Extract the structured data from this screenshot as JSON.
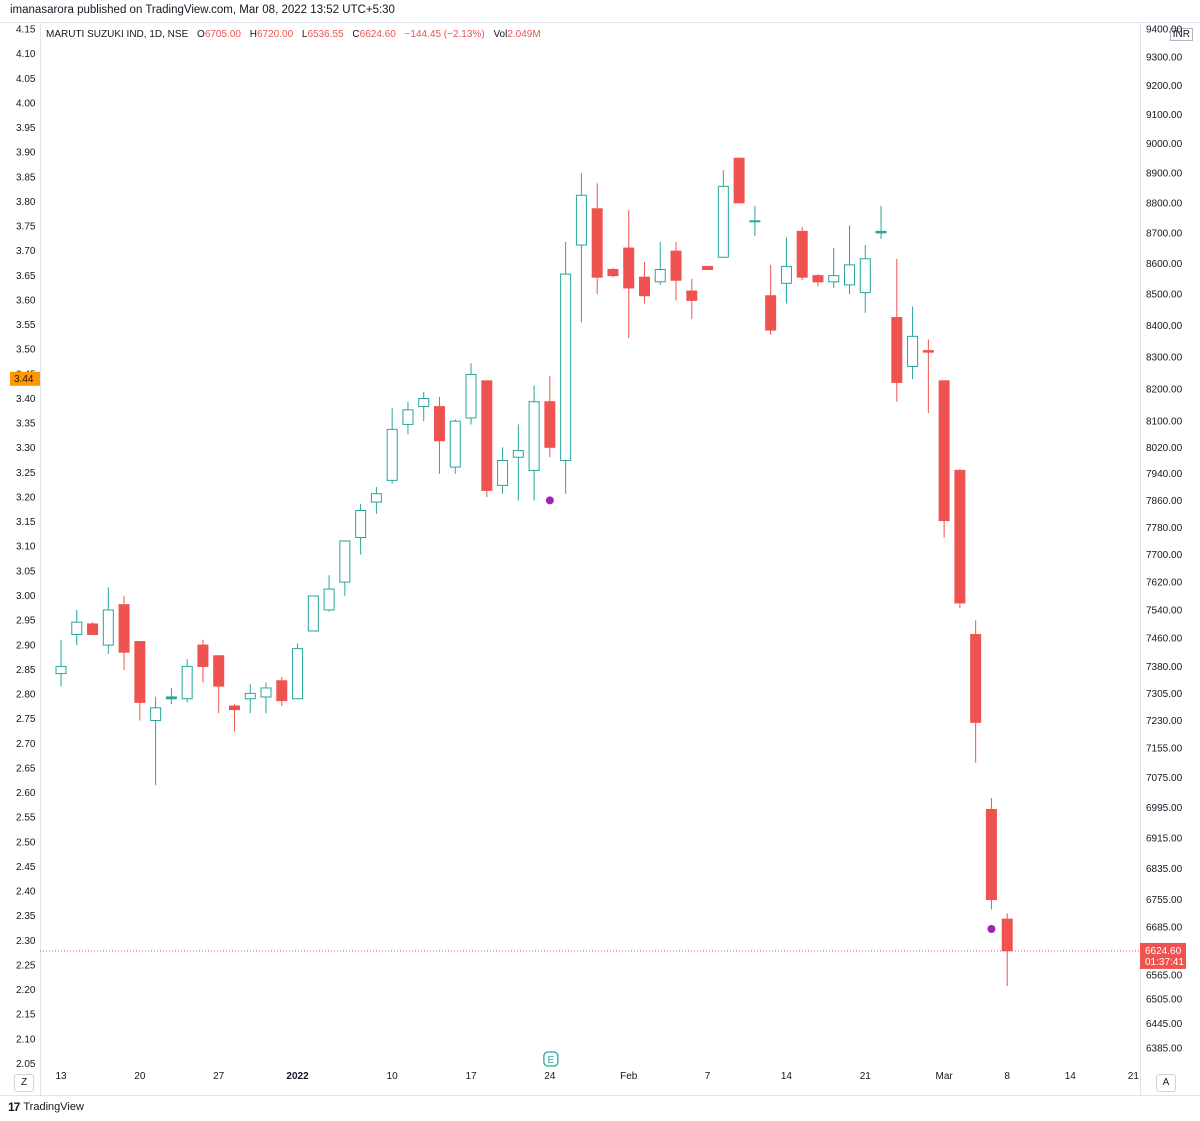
{
  "publisher": "imanasarora published on TradingView.com, Mar 08, 2022 13:52 UTC+5:30",
  "legend": {
    "symbol": "MARUTI SUZUKI IND, 1D, NSE",
    "open_label": "O",
    "open": "6705.00",
    "high_label": "H",
    "high": "6720.00",
    "low_label": "L",
    "low": "6536.55",
    "close_label": "C",
    "close": "6624.60",
    "change": "−144.45 (−2.13%)",
    "vol_label": "Vol",
    "vol": "2.049M"
  },
  "currency": "INR",
  "buttons": {
    "left": "Z",
    "right": "A"
  },
  "footer": {
    "logo": "17",
    "brand": "TradingView"
  },
  "earnings_marker": "E",
  "colors": {
    "up": "#26a69a",
    "down": "#ef5350",
    "accent": "#ff9800",
    "dot": "#9c27b0",
    "grid": "#e0e3eb"
  },
  "chart_data": {
    "type": "candlestick",
    "title": "MARUTI SUZUKI IND, 1D, NSE",
    "right_axis": {
      "ticks": [
        "9400.00",
        "9300.00",
        "9200.00",
        "9100.00",
        "9000.00",
        "8900.00",
        "8800.00",
        "8700.00",
        "8600.00",
        "8500.00",
        "8400.00",
        "8300.00",
        "8200.00",
        "8100.00",
        "8020.00",
        "7940.00",
        "7860.00",
        "7780.00",
        "7700.00",
        "7620.00",
        "7540.00",
        "7460.00",
        "7380.00",
        "7305.00",
        "7230.00",
        "7155.00",
        "7075.00",
        "6995.00",
        "6915.00",
        "6835.00",
        "6755.00",
        "6685.00",
        "6565.00",
        "6505.00",
        "6445.00",
        "6385.00"
      ],
      "scale": "log"
    },
    "left_axis": {
      "ticks": [
        "4.15",
        "4.10",
        "4.05",
        "4.00",
        "3.95",
        "3.90",
        "3.85",
        "3.80",
        "3.75",
        "3.70",
        "3.65",
        "3.60",
        "3.55",
        "3.50",
        "3.45",
        "3.40",
        "3.35",
        "3.30",
        "3.25",
        "3.20",
        "3.15",
        "3.10",
        "3.05",
        "3.00",
        "2.95",
        "2.90",
        "2.85",
        "2.80",
        "2.75",
        "2.70",
        "2.65",
        "2.60",
        "2.55",
        "2.50",
        "2.45",
        "2.40",
        "2.35",
        "2.30",
        "2.25",
        "2.20",
        "2.15",
        "2.10",
        "2.05"
      ],
      "badge": "3.44"
    },
    "x_ticks": [
      {
        "label": "13",
        "i": 0
      },
      {
        "label": "20",
        "i": 5
      },
      {
        "label": "27",
        "i": 10
      },
      {
        "label": "2022",
        "i": 15
      },
      {
        "label": "10",
        "i": 21
      },
      {
        "label": "17",
        "i": 26
      },
      {
        "label": "24",
        "i": 31
      },
      {
        "label": "Feb",
        "i": 36
      },
      {
        "label": "7",
        "i": 41
      },
      {
        "label": "14",
        "i": 46
      },
      {
        "label": "21",
        "i": 51
      },
      {
        "label": "Mar",
        "i": 56
      },
      {
        "label": "8",
        "i": 60
      },
      {
        "label": "14",
        "i": 64
      },
      {
        "label": "21",
        "i": 68
      }
    ],
    "last_price": {
      "value": "6624.60",
      "timer": "01:37:41",
      "price": 6624.6
    },
    "dots": [
      {
        "i": 31,
        "price": 7860
      },
      {
        "i": 59,
        "price": 6680
      }
    ],
    "earnings_index": 31,
    "candles": [
      {
        "o": 7360,
        "h": 7455,
        "l": 7325,
        "c": 7380
      },
      {
        "o": 7470,
        "h": 7540,
        "l": 7440,
        "c": 7505
      },
      {
        "o": 7500,
        "h": 7505,
        "l": 7470,
        "c": 7470
      },
      {
        "o": 7440,
        "h": 7605,
        "l": 7415,
        "c": 7540
      },
      {
        "o": 7555,
        "h": 7580,
        "l": 7370,
        "c": 7420
      },
      {
        "o": 7450,
        "h": 7450,
        "l": 7230,
        "c": 7280
      },
      {
        "o": 7230,
        "h": 7295,
        "l": 7055,
        "c": 7265
      },
      {
        "o": 7290,
        "h": 7320,
        "l": 7275,
        "c": 7295
      },
      {
        "o": 7290,
        "h": 7400,
        "l": 7280,
        "c": 7380
      },
      {
        "o": 7440,
        "h": 7455,
        "l": 7335,
        "c": 7380
      },
      {
        "o": 7410,
        "h": 7410,
        "l": 7250,
        "c": 7325
      },
      {
        "o": 7270,
        "h": 7275,
        "l": 7200,
        "c": 7260
      },
      {
        "o": 7290,
        "h": 7330,
        "l": 7250,
        "c": 7305
      },
      {
        "o": 7295,
        "h": 7335,
        "l": 7250,
        "c": 7320
      },
      {
        "o": 7340,
        "h": 7350,
        "l": 7270,
        "c": 7285
      },
      {
        "o": 7290,
        "h": 7445,
        "l": 7290,
        "c": 7430
      },
      {
        "o": 7480,
        "h": 7580,
        "l": 7480,
        "c": 7580
      },
      {
        "o": 7540,
        "h": 7640,
        "l": 7535,
        "c": 7600
      },
      {
        "o": 7620,
        "h": 7730,
        "l": 7580,
        "c": 7740
      },
      {
        "o": 7750,
        "h": 7850,
        "l": 7700,
        "c": 7830
      },
      {
        "o": 7855,
        "h": 7900,
        "l": 7820,
        "c": 7880
      },
      {
        "o": 7920,
        "h": 8140,
        "l": 7910,
        "c": 8075
      },
      {
        "o": 8090,
        "h": 8160,
        "l": 8060,
        "c": 8135
      },
      {
        "o": 8145,
        "h": 8190,
        "l": 8100,
        "c": 8170
      },
      {
        "o": 8145,
        "h": 8175,
        "l": 7940,
        "c": 8040
      },
      {
        "o": 7960,
        "h": 8105,
        "l": 7940,
        "c": 8100
      },
      {
        "o": 8110,
        "h": 8280,
        "l": 8090,
        "c": 8245
      },
      {
        "o": 8225,
        "h": 8225,
        "l": 7870,
        "c": 7890
      },
      {
        "o": 7905,
        "h": 8020,
        "l": 7880,
        "c": 7980
      },
      {
        "o": 7990,
        "h": 8090,
        "l": 7860,
        "c": 8010
      },
      {
        "o": 7950,
        "h": 8210,
        "l": 7860,
        "c": 8160
      },
      {
        "o": 8160,
        "h": 8240,
        "l": 7990,
        "c": 8020
      },
      {
        "o": 7980,
        "h": 8670,
        "l": 7880,
        "c": 8565
      },
      {
        "o": 8660,
        "h": 8900,
        "l": 8410,
        "c": 8825
      },
      {
        "o": 8780,
        "h": 8865,
        "l": 8500,
        "c": 8555
      },
      {
        "o": 8580,
        "h": 8585,
        "l": 8555,
        "c": 8560
      },
      {
        "o": 8650,
        "h": 8775,
        "l": 8360,
        "c": 8520
      },
      {
        "o": 8555,
        "h": 8605,
        "l": 8470,
        "c": 8495
      },
      {
        "o": 8540,
        "h": 8670,
        "l": 8530,
        "c": 8580
      },
      {
        "o": 8640,
        "h": 8670,
        "l": 8480,
        "c": 8545
      },
      {
        "o": 8510,
        "h": 8550,
        "l": 8420,
        "c": 8480
      },
      {
        "o": 8590,
        "h": 8590,
        "l": 8580,
        "c": 8580
      },
      {
        "o": 8620,
        "h": 8910,
        "l": 8625,
        "c": 8855
      },
      {
        "o": 8950,
        "h": 8950,
        "l": 8800,
        "c": 8800
      },
      {
        "o": 8740,
        "h": 8790,
        "l": 8690,
        "c": 8740
      },
      {
        "o": 8495,
        "h": 8595,
        "l": 8370,
        "c": 8385
      },
      {
        "o": 8535,
        "h": 8685,
        "l": 8470,
        "c": 8590
      },
      {
        "o": 8705,
        "h": 8720,
        "l": 8545,
        "c": 8555
      },
      {
        "o": 8560,
        "h": 8565,
        "l": 8525,
        "c": 8540
      },
      {
        "o": 8540,
        "h": 8650,
        "l": 8520,
        "c": 8560
      },
      {
        "o": 8530,
        "h": 8725,
        "l": 8500,
        "c": 8595
      },
      {
        "o": 8505,
        "h": 8660,
        "l": 8440,
        "c": 8615
      },
      {
        "o": 8700,
        "h": 8790,
        "l": 8680,
        "c": 8705
      },
      {
        "o": 8425,
        "h": 8615,
        "l": 8160,
        "c": 8220
      },
      {
        "o": 8270,
        "h": 8460,
        "l": 8230,
        "c": 8365
      },
      {
        "o": 8320,
        "h": 8355,
        "l": 8125,
        "c": 8315
      },
      {
        "o": 8225,
        "h": 8225,
        "l": 7750,
        "c": 7800
      },
      {
        "o": 7950,
        "h": 7955,
        "l": 7545,
        "c": 7560
      },
      {
        "o": 7470,
        "h": 7510,
        "l": 7115,
        "c": 7225
      },
      {
        "o": 6990,
        "h": 7020,
        "l": 6730,
        "c": 6755
      },
      {
        "o": 6705,
        "h": 6720,
        "l": 6537,
        "c": 6625
      }
    ]
  }
}
